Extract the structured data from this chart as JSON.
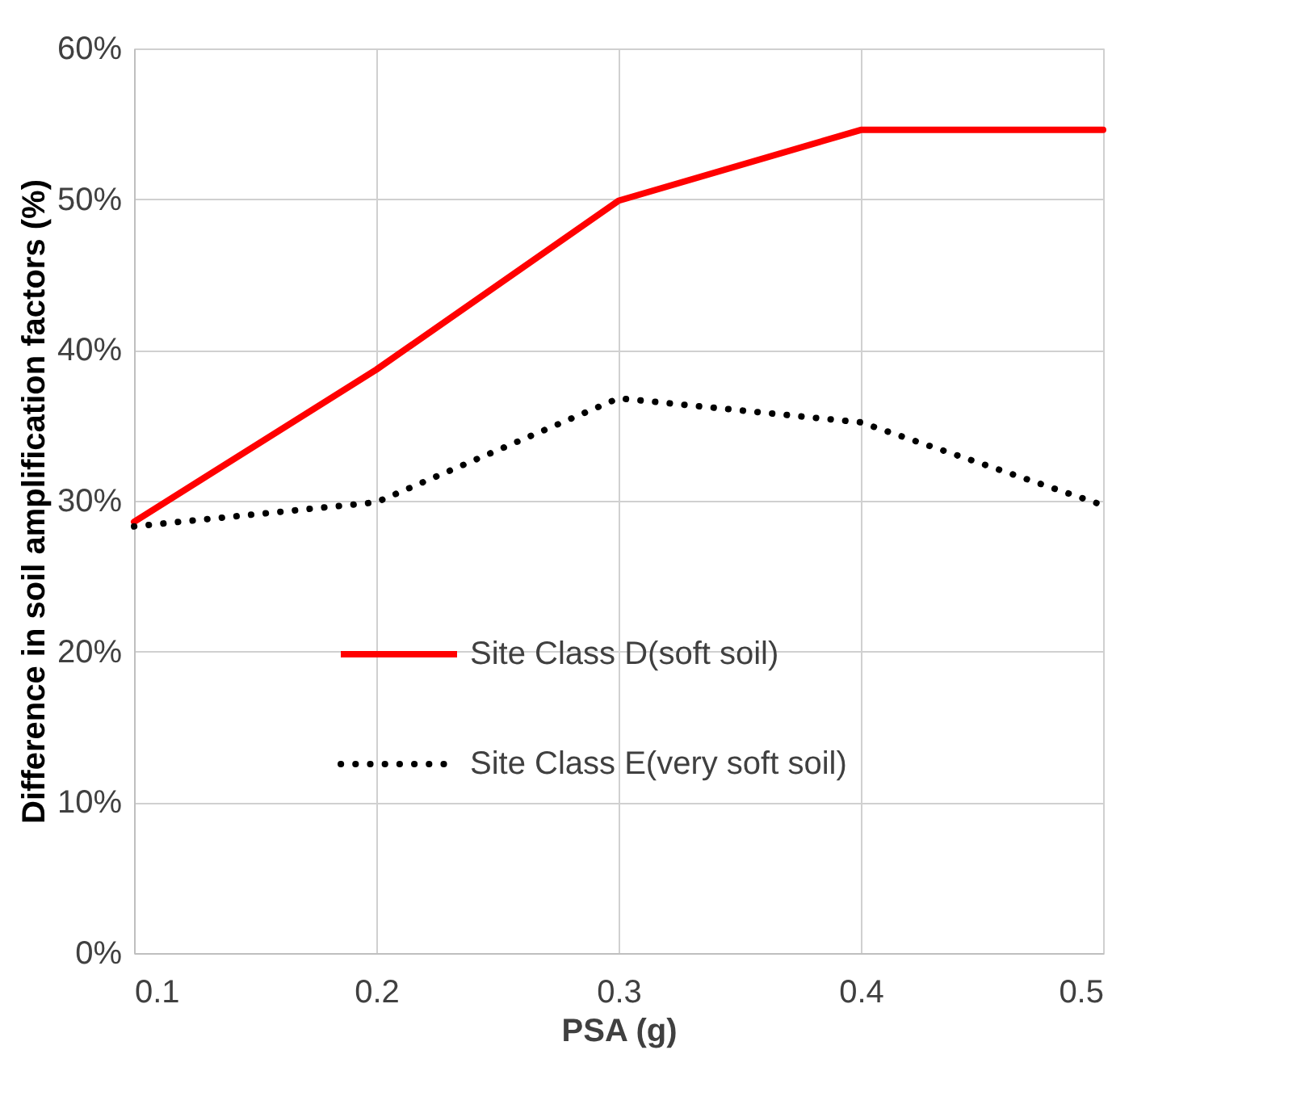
{
  "chart_data": {
    "type": "line",
    "xlabel": "PSA (g)",
    "ylabel": "Difference in soil amplification factors (%)",
    "x": [
      0.1,
      0.2,
      0.3,
      0.4,
      0.5
    ],
    "series": [
      {
        "name": "Site Class D(soft soil)",
        "color": "#ff0000",
        "line_style": "solid",
        "values": [
          28.6,
          38.7,
          49.9,
          54.6,
          54.6
        ]
      },
      {
        "name": "Site Class E(very soft soil)",
        "color": "#000000",
        "line_style": "dotted",
        "values": [
          28.3,
          29.9,
          36.8,
          35.2,
          29.7
        ]
      }
    ],
    "xlim": [
      0.1,
      0.5
    ],
    "xticks": [
      0.1,
      0.2,
      0.3,
      0.4,
      0.5
    ],
    "ylim": [
      0,
      60
    ],
    "yticks": [
      {
        "value": 0,
        "label": "0%"
      },
      {
        "value": 10,
        "label": "10%"
      },
      {
        "value": 20,
        "label": "20%"
      },
      {
        "value": 30,
        "label": "30%"
      },
      {
        "value": 40,
        "label": "40%"
      },
      {
        "value": 50,
        "label": "50%"
      },
      {
        "value": 60,
        "label": "60%"
      }
    ],
    "grid": true,
    "legend": "bottom right",
    "marker": "none"
  }
}
